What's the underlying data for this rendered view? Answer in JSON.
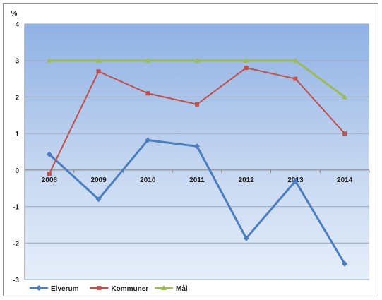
{
  "chart_data": {
    "type": "line",
    "ylabel": "%",
    "categories": [
      "2008",
      "2009",
      "2010",
      "2011",
      "2012",
      "2013",
      "2014"
    ],
    "ylim": [
      -3,
      4
    ],
    "yticks": [
      4,
      3,
      2,
      1,
      0,
      -1,
      -2,
      -3
    ],
    "grid": true,
    "legend_position": "bottom-left",
    "series": [
      {
        "name": "Elverum",
        "color": "#4a7ebf",
        "marker": "diamond",
        "values": [
          0.43,
          -0.8,
          0.82,
          0.65,
          -1.87,
          -0.3,
          -2.57
        ]
      },
      {
        "name": "Kommuner",
        "color": "#c0504d",
        "marker": "square",
        "values": [
          -0.1,
          2.7,
          2.1,
          1.8,
          2.8,
          2.5,
          1.0
        ]
      },
      {
        "name": "Mål",
        "color": "#9bbb59",
        "marker": "triangle",
        "values": [
          3.0,
          3.0,
          3.0,
          3.0,
          3.0,
          3.0,
          2.0
        ]
      }
    ]
  }
}
